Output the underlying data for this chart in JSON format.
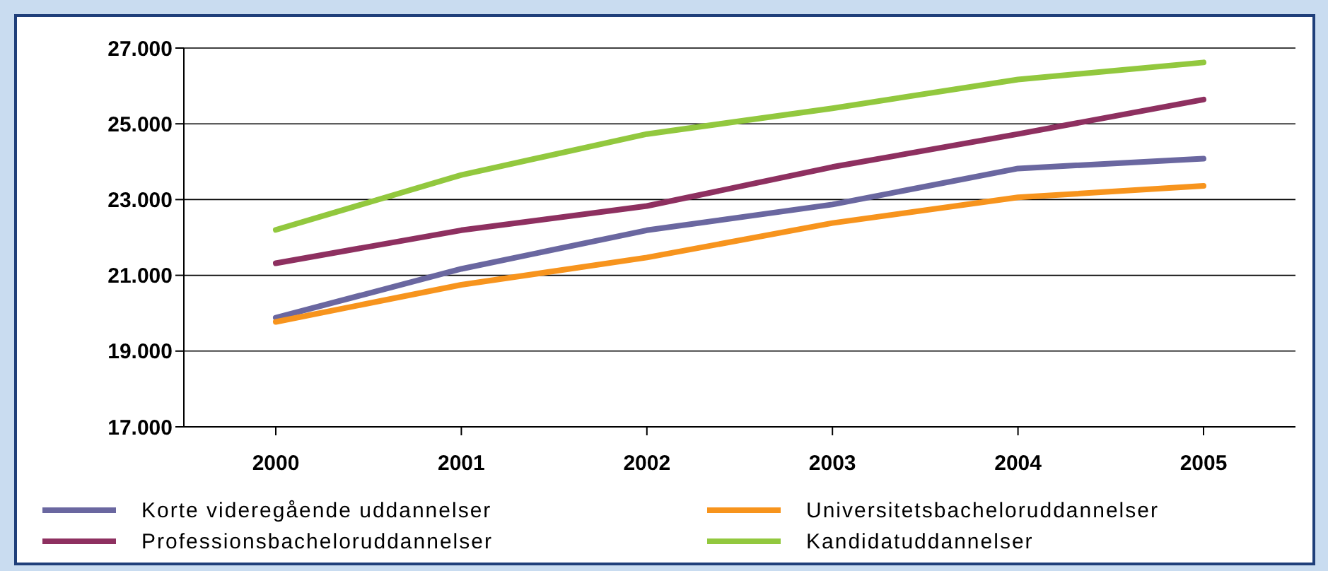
{
  "chart_data": {
    "type": "line",
    "categories": [
      "2000",
      "2001",
      "2002",
      "2003",
      "2004",
      "2005"
    ],
    "series": [
      {
        "name": "Korte videregående uddannelser",
        "color": "#6a67a0",
        "values": [
          19880,
          21170,
          22190,
          22870,
          23820,
          24080
        ]
      },
      {
        "name": "Professionsbacheloruddannelser",
        "color": "#8e3060",
        "values": [
          21320,
          22190,
          22830,
          23860,
          24730,
          25640
        ]
      },
      {
        "name": "Universitetsbacheloruddannelser",
        "color": "#f7941d",
        "values": [
          19770,
          20750,
          21470,
          22380,
          23060,
          23360
        ]
      },
      {
        "name": "Kandidatuddannelser",
        "color": "#92c83e",
        "values": [
          22200,
          23650,
          24730,
          25410,
          26170,
          26620
        ]
      }
    ],
    "ylim": [
      17000,
      27000
    ],
    "yticks": [
      {
        "value": 17000,
        "label": "17.000"
      },
      {
        "value": 19000,
        "label": "19.000"
      },
      {
        "value": 21000,
        "label": "21.000"
      },
      {
        "value": 23000,
        "label": "23.000"
      },
      {
        "value": 25000,
        "label": "25.000"
      },
      {
        "value": 27000,
        "label": "27.000"
      }
    ],
    "grid": "y",
    "legend": "bottom",
    "marker": "none",
    "line_style": "solid"
  }
}
